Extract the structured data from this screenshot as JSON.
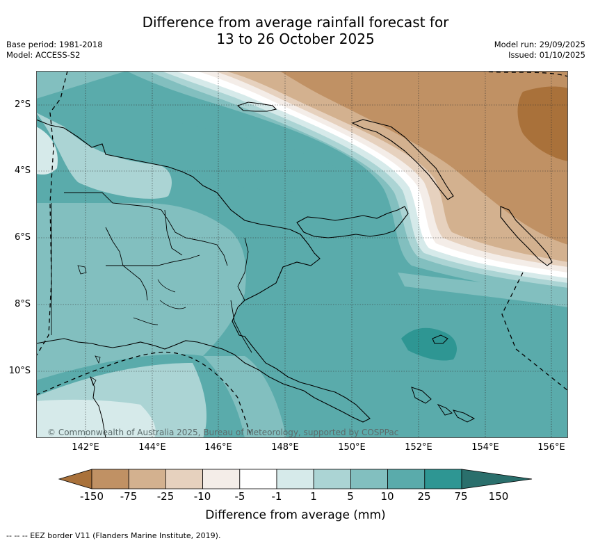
{
  "title_line1": "Difference from average rainfall forecast for",
  "title_line2": "13 to 26 October 2025",
  "base_period": "Base period: 1981-2018",
  "model": "Model: ACCESS-S2",
  "model_run": "Model run: 29/09/2025",
  "issued": "Issued: 01/10/2025",
  "lat_labels": [
    "2°S",
    "4°S",
    "6°S",
    "8°S",
    "10°S"
  ],
  "lon_labels": [
    "142°E",
    "144°E",
    "146°E",
    "148°E",
    "150°E",
    "152°E",
    "154°E",
    "156°E"
  ],
  "copyright": "© Commonwealth of Australia 2025, Bureau of Meteorology, supported by COSPPac",
  "colorbar": {
    "title": "Difference from average (mm)",
    "labels": [
      "-150",
      "-75",
      "-25",
      "-10",
      "-5",
      "-1",
      "1",
      "5",
      "10",
      "25",
      "75",
      "150"
    ],
    "colors": [
      "#a9713a",
      "#c09164",
      "#d3b18f",
      "#e6d1be",
      "#f4ede8",
      "#ffffff",
      "#d6eaea",
      "#abd4d4",
      "#82bfbf",
      "#5aabab",
      "#2e9693",
      "#2a6f6c"
    ]
  },
  "eez_note": "--  --  -- EEZ border V11 (Flanders Marine Institute, 2019)."
}
